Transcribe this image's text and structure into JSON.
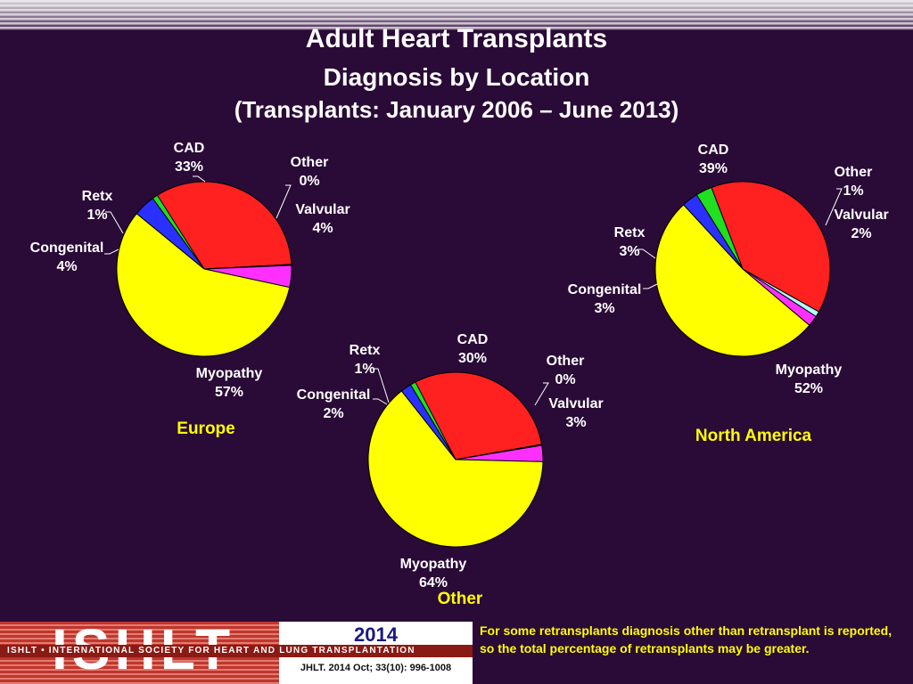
{
  "title": {
    "line1": "Adult Heart Transplants",
    "line2": "Diagnosis by Location",
    "line3": "(Transplants: January 2006 – June 2013)"
  },
  "colors": {
    "CAD": "#ff2020",
    "Other": "#b0ffff",
    "Valvular": "#ff30ff",
    "Myopathy": "#ffff00",
    "Congenital": "#2a30ff",
    "Retx": "#20e020",
    "background": "#2a0a36",
    "region_label": "#ffff00"
  },
  "chart_data": [
    {
      "type": "pie",
      "title": "Europe",
      "categories": [
        "CAD",
        "Other",
        "Valvular",
        "Myopathy",
        "Congenital",
        "Retx"
      ],
      "values": [
        33,
        0,
        4,
        57,
        4,
        1
      ],
      "labels": [
        "33%",
        "0%",
        "4%",
        "57%",
        "4%",
        "1%"
      ]
    },
    {
      "type": "pie",
      "title": "North America",
      "categories": [
        "CAD",
        "Other",
        "Valvular",
        "Myopathy",
        "Congenital",
        "Retx"
      ],
      "values": [
        39,
        1,
        2,
        52,
        3,
        3
      ],
      "labels": [
        "39%",
        "1%",
        "2%",
        "52%",
        "3%",
        "3%"
      ]
    },
    {
      "type": "pie",
      "title": "Other",
      "categories": [
        "CAD",
        "Other",
        "Valvular",
        "Myopathy",
        "Congenital",
        "Retx"
      ],
      "values": [
        30,
        0,
        3,
        64,
        2,
        1
      ],
      "labels": [
        "30%",
        "0%",
        "3%",
        "64%",
        "2%",
        "1%"
      ]
    }
  ],
  "footer": {
    "logo": "ISHLT",
    "logo_band": "ISHLT • INTERNATIONAL SOCIETY FOR HEART AND LUNG TRANSPLANTATION",
    "year": "2014",
    "citation": "JHLT. 2014 Oct; 33(10): 996-1008",
    "note": "For some retransplants diagnosis other than retransplant is reported, so the total percentage of retransplants may be greater."
  }
}
